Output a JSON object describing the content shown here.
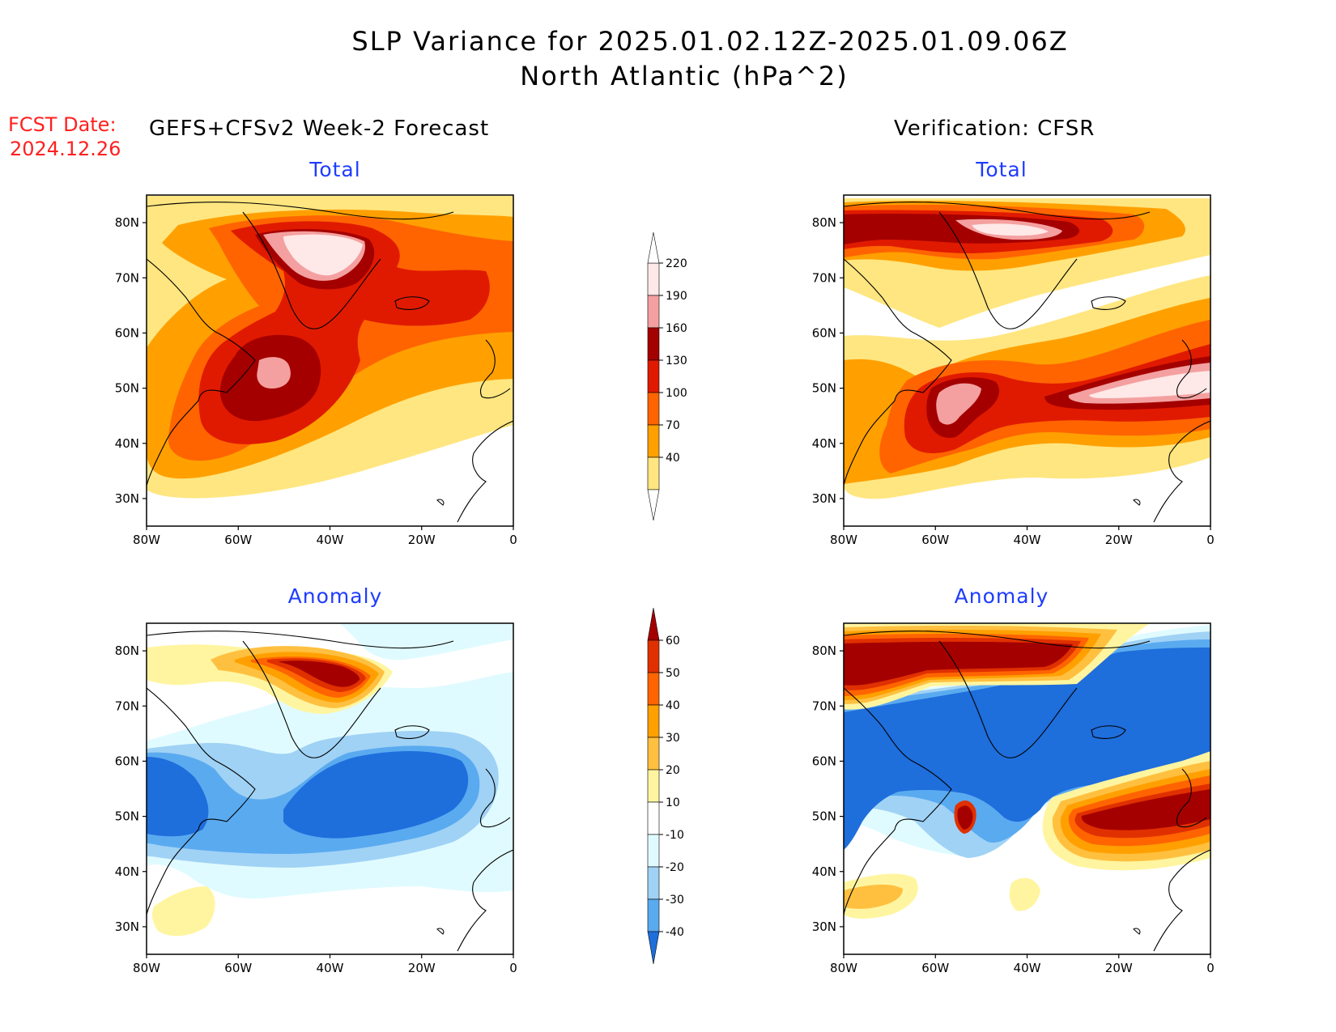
{
  "header": {
    "title_line1": "SLP Variance for 2025.01.02.12Z-2025.01.09.06Z",
    "title_line2": "North Atlantic (hPa^2)",
    "fcst_label": "FCST Date:",
    "fcst_date": "2024.12.26",
    "left_column_title": "GEFS+CFSv2 Week-2 Forecast",
    "right_column_title": "Verification: CFSR"
  },
  "panels": {
    "fcst_total": {
      "title": "Total"
    },
    "verif_total": {
      "title": "Total"
    },
    "fcst_anom": {
      "title": "Anomaly"
    },
    "verif_anom": {
      "title": "Anomaly"
    }
  },
  "axes": {
    "lat_labels": [
      "80N",
      "70N",
      "60N",
      "50N",
      "40N",
      "30N"
    ],
    "lon_labels": [
      "80W",
      "60W",
      "40W",
      "20W",
      "0"
    ]
  },
  "colorbars": {
    "total": {
      "labels": [
        "220",
        "190",
        "160",
        "130",
        "100",
        "70",
        "40"
      ],
      "colors": [
        "#ffe8e8",
        "#f4a0a0",
        "#a50000",
        "#e01a00",
        "#ff6400",
        "#ffa000",
        "#ffe680"
      ]
    },
    "anomaly": {
      "labels": [
        "60",
        "50",
        "40",
        "30",
        "20",
        "10",
        "-10",
        "-20",
        "-30",
        "-40"
      ],
      "colors": [
        "#a50000",
        "#e03000",
        "#ff6400",
        "#ffa000",
        "#ffc040",
        "#fff5a0",
        "#ffffff",
        "#e0fbff",
        "#a0d2f5",
        "#5aaaf0",
        "#1e6edc"
      ]
    }
  }
}
